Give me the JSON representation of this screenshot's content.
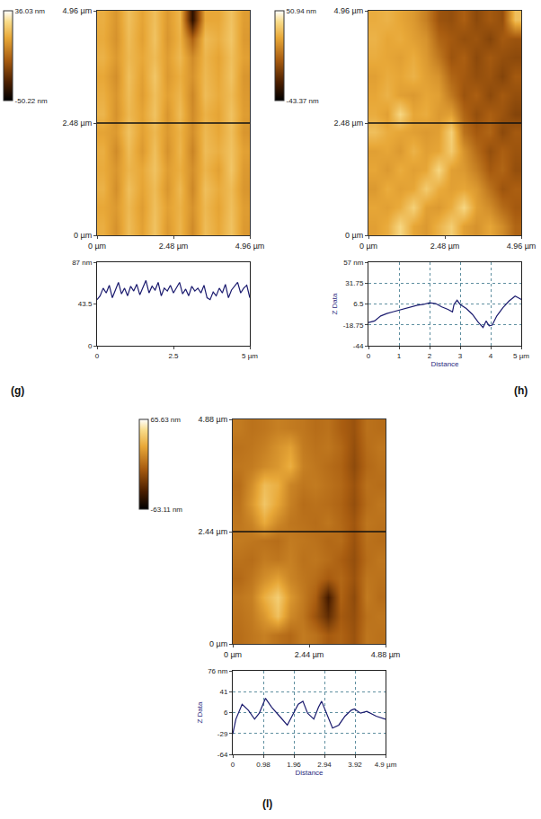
{
  "chart_data": [
    {
      "label": "(g)",
      "charts": [
        {
          "type": "heatmap",
          "xlim": [
            0,
            4.96
          ],
          "xticks": [
            {
              "value": 0,
              "label": "0 µm"
            },
            {
              "value": 2.48,
              "label": "2.48 µm"
            },
            {
              "value": 4.96,
              "label": "4.96 µm"
            }
          ],
          "ylim": [
            0,
            4.96
          ],
          "yticks": [
            {
              "value": 0,
              "label": "0 µm"
            },
            {
              "value": 2.48,
              "label": "2.48 µm"
            },
            {
              "value": 4.96,
              "label": "4.96 µm"
            }
          ],
          "zlim": [
            -50.22,
            36.03
          ],
          "zticks": [
            {
              "value": -50.22,
              "label": "-50.22 nm"
            },
            {
              "value": 36.03,
              "label": "36.03 nm"
            }
          ],
          "profile_line": 2.48,
          "z": [
            [
              12,
              4,
              16,
              8,
              18,
              6,
              14,
              2,
              16,
              10,
              18,
              6
            ],
            [
              10,
              6,
              15,
              7,
              17,
              8,
              13,
              4,
              15,
              9,
              17,
              7
            ],
            [
              13,
              3,
              17,
              9,
              16,
              5,
              15,
              1,
              17,
              11,
              16,
              5
            ],
            [
              11,
              5,
              14,
              10,
              18,
              7,
              12,
              3,
              14,
              8,
              19,
              6
            ],
            [
              12,
              2,
              16,
              6,
              17,
              4,
              14,
              0,
              16,
              12,
              18,
              8
            ],
            [
              9,
              6,
              18,
              8,
              15,
              6,
              13,
              3,
              15,
              10,
              17,
              5
            ],
            [
              14,
              4,
              15,
              9,
              18,
              5,
              16,
              2,
              13,
              9,
              18,
              7
            ],
            [
              12,
              5,
              16,
              7,
              17,
              8,
              14,
              1,
              16,
              11,
              16,
              6
            ],
            [
              10,
              3,
              17,
              8,
              19,
              6,
              12,
              4,
              15,
              10,
              18,
              5
            ],
            [
              13,
              6,
              15,
              10,
              16,
              7,
              15,
              2,
              14,
              9,
              17,
              8
            ],
            [
              11,
              4,
              16,
              8,
              18,
              5,
              13,
              -10,
              16,
              12,
              19,
              6
            ],
            [
              12,
              5,
              17,
              9,
              17,
              6,
              14,
              -40,
              10,
              10,
              18,
              7
            ]
          ]
        },
        {
          "type": "line",
          "color": "#1a1a6e",
          "grid": false,
          "xlim": [
            0,
            5
          ],
          "xticks": [
            0,
            2.5,
            {
              "value": 5,
              "label": "5 µm"
            }
          ],
          "ylim": [
            0,
            87
          ],
          "yticks": [
            0,
            43.5,
            {
              "value": 87,
              "label": "87 nm"
            }
          ],
          "x": [
            0,
            0.1,
            0.2,
            0.3,
            0.4,
            0.5,
            0.6,
            0.7,
            0.8,
            0.9,
            1.0,
            1.1,
            1.2,
            1.3,
            1.4,
            1.5,
            1.6,
            1.7,
            1.8,
            1.9,
            2.0,
            2.1,
            2.2,
            2.3,
            2.4,
            2.5,
            2.6,
            2.7,
            2.8,
            2.9,
            3.0,
            3.1,
            3.2,
            3.3,
            3.4,
            3.5,
            3.6,
            3.7,
            3.8,
            3.9,
            4.0,
            4.1,
            4.2,
            4.3,
            4.4,
            4.5,
            4.6,
            4.7,
            4.8,
            4.9,
            5.0
          ],
          "values": [
            48,
            52,
            60,
            55,
            63,
            50,
            58,
            66,
            54,
            60,
            52,
            62,
            57,
            64,
            53,
            60,
            68,
            55,
            62,
            58,
            66,
            52,
            60,
            57,
            63,
            55,
            61,
            66,
            54,
            59,
            52,
            62,
            57,
            60,
            55,
            63,
            50,
            48,
            56,
            52,
            60,
            55,
            64,
            50,
            58,
            62,
            66,
            55,
            60,
            63,
            50
          ]
        }
      ]
    },
    {
      "label": "(h)",
      "charts": [
        {
          "type": "heatmap",
          "xlim": [
            0,
            4.96
          ],
          "xticks": [
            {
              "value": 0,
              "label": "0 µm"
            },
            {
              "value": 2.48,
              "label": "2.48 µm"
            },
            {
              "value": 4.96,
              "label": "4.96 µm"
            }
          ],
          "ylim": [
            0,
            4.96
          ],
          "yticks": [
            {
              "value": 0,
              "label": "0 µm"
            },
            {
              "value": 2.48,
              "label": "2.48 µm"
            },
            {
              "value": 4.96,
              "label": "4.96 µm"
            }
          ],
          "zlim": [
            -43.37,
            50.94
          ],
          "zticks": [
            {
              "value": -43.37,
              "label": "-43.37 nm"
            },
            {
              "value": 50.94,
              "label": "50.94 nm"
            }
          ],
          "profile_line": 2.48,
          "z": [
            [
              20,
              24,
              38,
              22,
              18,
              26,
              35,
              20,
              16,
              22,
              14,
              2
            ],
            [
              22,
              20,
              24,
              36,
              20,
              18,
              24,
              38,
              20,
              14,
              4,
              -2
            ],
            [
              18,
              24,
              20,
              22,
              34,
              24,
              20,
              22,
              18,
              6,
              -4,
              0
            ],
            [
              22,
              18,
              24,
              20,
              22,
              38,
              20,
              18,
              10,
              -2,
              2,
              -6
            ],
            [
              20,
              22,
              18,
              26,
              20,
              22,
              34,
              16,
              4,
              -6,
              0,
              -4
            ],
            [
              30,
              24,
              22,
              20,
              18,
              20,
              36,
              6,
              -2,
              2,
              -8,
              -2
            ],
            [
              24,
              20,
              38,
              22,
              24,
              18,
              20,
              2,
              -6,
              0,
              -4,
              -10
            ],
            [
              22,
              26,
              20,
              18,
              22,
              20,
              8,
              -4,
              0,
              -8,
              -2,
              -6
            ],
            [
              20,
              24,
              22,
              26,
              20,
              16,
              2,
              -2,
              -6,
              -4,
              -10,
              -2
            ],
            [
              24,
              22,
              20,
              24,
              18,
              8,
              -4,
              0,
              -8,
              -2,
              -6,
              -8
            ],
            [
              26,
              22,
              24,
              20,
              16,
              2,
              -2,
              -6,
              -4,
              -10,
              -2,
              -4
            ],
            [
              24,
              26,
              22,
              18,
              10,
              -4,
              -6,
              0,
              -8,
              -2,
              -6,
              30
            ]
          ]
        },
        {
          "type": "line",
          "color": "#1a1a6e",
          "grid": true,
          "xlabel": "Distance",
          "ylabel": "Z Data",
          "xlim": [
            0,
            5
          ],
          "xticks": [
            0,
            1,
            2,
            3,
            4,
            {
              "value": 5,
              "label": "5 µm"
            }
          ],
          "ylim": [
            -44,
            57
          ],
          "yticks": [
            -44,
            -18.75,
            6.5,
            31.75,
            {
              "value": 57,
              "label": "57 nm"
            }
          ],
          "x": [
            0,
            0.2,
            0.4,
            0.6,
            0.8,
            1.0,
            1.2,
            1.4,
            1.6,
            1.8,
            2.0,
            2.2,
            2.4,
            2.6,
            2.75,
            2.8,
            2.9,
            3.0,
            3.2,
            3.4,
            3.6,
            3.75,
            3.85,
            3.95,
            4.05,
            4.2,
            4.4,
            4.6,
            4.8,
            4.9,
            5.0
          ],
          "values": [
            -16,
            -14,
            -8,
            -5,
            -3,
            -1,
            1,
            3,
            5,
            6,
            8,
            7,
            3,
            0,
            -3,
            6,
            11,
            6,
            1,
            -6,
            -16,
            -22,
            -14,
            -20,
            -19,
            -8,
            2,
            10,
            16,
            14,
            12
          ]
        }
      ]
    },
    {
      "label": "(l)",
      "charts": [
        {
          "type": "heatmap",
          "xlim": [
            0,
            4.88
          ],
          "xticks": [
            {
              "value": 0,
              "label": "0 µm"
            },
            {
              "value": 2.44,
              "label": "2.44 µm"
            },
            {
              "value": 4.88,
              "label": "4.88 µm"
            }
          ],
          "ylim": [
            0,
            4.88
          ],
          "yticks": [
            {
              "value": 0,
              "label": "0 µm"
            },
            {
              "value": 2.44,
              "label": "2.44 µm"
            },
            {
              "value": 4.88,
              "label": "4.88 µm"
            }
          ],
          "zlim": [
            -63.11,
            65.63
          ],
          "zticks": [
            {
              "value": -63.11,
              "label": "-63.11 nm"
            },
            {
              "value": 65.63,
              "label": "65.63 nm"
            }
          ],
          "profile_line": 2.44,
          "z": [
            [
              2,
              6,
              10,
              4,
              0,
              8,
              4,
              -6,
              -2,
              -10,
              6,
              4
            ],
            [
              4,
              8,
              20,
              38,
              14,
              6,
              -10,
              -30,
              -6,
              -12,
              4,
              6
            ],
            [
              6,
              10,
              30,
              44,
              20,
              8,
              -4,
              -40,
              -2,
              -14,
              8,
              2
            ],
            [
              0,
              6,
              16,
              24,
              12,
              6,
              2,
              -6,
              0,
              -10,
              6,
              4
            ],
            [
              4,
              2,
              8,
              6,
              10,
              4,
              6,
              2,
              -4,
              -12,
              2,
              6
            ],
            [
              8,
              6,
              4,
              2,
              8,
              6,
              4,
              0,
              2,
              -10,
              4,
              2
            ],
            [
              6,
              12,
              28,
              14,
              6,
              4,
              2,
              6,
              0,
              -8,
              6,
              4
            ],
            [
              4,
              20,
              40,
              26,
              10,
              2,
              4,
              2,
              -2,
              -12,
              2,
              6
            ],
            [
              2,
              16,
              36,
              30,
              12,
              6,
              8,
              4,
              0,
              -10,
              4,
              2
            ],
            [
              6,
              8,
              14,
              20,
              30,
              10,
              6,
              2,
              -2,
              -14,
              0,
              4
            ],
            [
              4,
              6,
              10,
              18,
              24,
              8,
              4,
              6,
              0,
              -12,
              2,
              6
            ],
            [
              8,
              4,
              6,
              10,
              8,
              6,
              2,
              4,
              -4,
              -10,
              4,
              2
            ]
          ]
        },
        {
          "type": "line",
          "color": "#1a1a6e",
          "grid": true,
          "xlabel": "Distance",
          "ylabel": "Z Data",
          "xlim": [
            0,
            4.9
          ],
          "xticks": [
            0,
            0.98,
            1.96,
            2.94,
            3.92,
            {
              "value": 4.9,
              "label": "4.9 µm"
            }
          ],
          "ylim": [
            -64,
            76
          ],
          "yticks": [
            -64,
            -29,
            6,
            41,
            {
              "value": 76,
              "label": "76 nm"
            }
          ],
          "x": [
            0,
            0.1,
            0.3,
            0.5,
            0.7,
            0.85,
            1.05,
            1.25,
            1.5,
            1.75,
            1.9,
            2.1,
            2.25,
            2.4,
            2.6,
            2.75,
            2.85,
            3.0,
            3.2,
            3.4,
            3.6,
            3.8,
            3.9,
            4.1,
            4.3,
            4.6,
            4.9
          ],
          "values": [
            -30,
            -5,
            20,
            10,
            -5,
            5,
            30,
            15,
            0,
            -15,
            0,
            20,
            25,
            5,
            -5,
            15,
            25,
            5,
            -20,
            -15,
            0,
            10,
            12,
            5,
            8,
            0,
            -5
          ]
        }
      ]
    }
  ]
}
